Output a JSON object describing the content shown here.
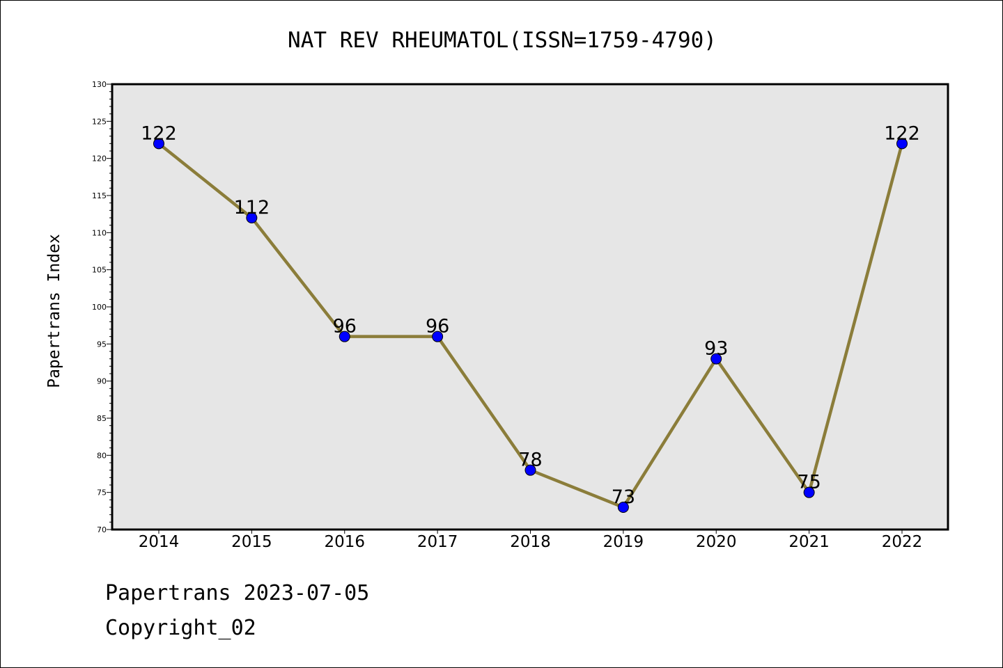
{
  "chart_data": {
    "type": "line",
    "title": "NAT REV RHEUMATOL(ISSN=1759-4790)",
    "xlabel": "",
    "ylabel": "Papertrans Index",
    "categories": [
      "2014",
      "2015",
      "2016",
      "2017",
      "2018",
      "2019",
      "2020",
      "2021",
      "2022"
    ],
    "values": [
      122,
      112,
      96,
      96,
      78,
      73,
      93,
      75,
      122
    ],
    "ylim": [
      70,
      130
    ],
    "ytick_step": 5,
    "yminor_step": 1,
    "grid": false,
    "legend": "none",
    "colors": {
      "line": "#8B7D3A",
      "marker": "#0000FF",
      "plot_background": "#E6E6E6"
    }
  },
  "footer": {
    "line1": "Papertrans 2023-07-05",
    "line2": "Copyright_02"
  }
}
